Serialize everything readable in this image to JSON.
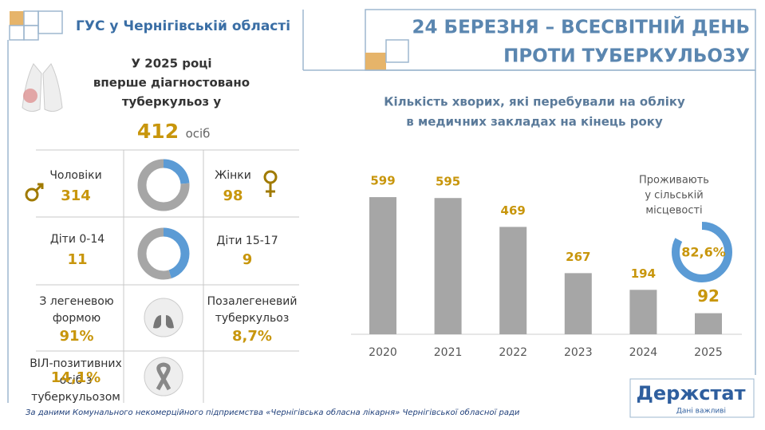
{
  "header": {
    "org": "ГУС у Чернігівській області",
    "title": [
      "24 БЕРЕЗНЯ – ВСЕСВІТНІЙ ДЕНЬ",
      "ПРОТИ ТУБЕРКУЛЬОЗУ"
    ]
  },
  "intro": {
    "lines": [
      "У 2025  році",
      "вперше діагностовано",
      "туберкульоз у"
    ],
    "total": 412,
    "unit": "осіб"
  },
  "stats": {
    "men": {
      "label": "Чоловіки",
      "value": 314
    },
    "women": {
      "label": "Жінки",
      "value": 98
    },
    "kids_0_14": {
      "label": "Діти 0-14",
      "value": 11
    },
    "kids_15_17": {
      "label": "Діти 15-17",
      "value": 9
    },
    "pulmonary": {
      "label": [
        "З легеневою",
        "формою"
      ],
      "value": "91%"
    },
    "extrapulmonary": {
      "label": [
        "Позалегеневий",
        "туберкульоз"
      ],
      "value": "8,7%"
    },
    "hiv": {
      "label": [
        "ВІЛ-позитивних",
        "осіб з",
        "туберкульозом"
      ],
      "value": "14,1%"
    }
  },
  "chart_data": {
    "type": "bar",
    "title": [
      "Кількість хворих, які перебували на обліку",
      "в медичних закладах на кінець року"
    ],
    "categories": [
      "2020",
      "2021",
      "2022",
      "2023",
      "2024",
      "2025"
    ],
    "values": [
      599,
      595,
      469,
      267,
      194,
      92
    ],
    "color": "#a6a6a6",
    "annotation": {
      "lines": [
        "Проживають",
        "у сільській",
        "місцевості"
      ],
      "value": 82.6,
      "value_label": "82,6%",
      "color": "#5b9bd5"
    }
  },
  "footer": {
    "source": "За даними Комунального некомерційного підприємства «Чернігівська обласна лікарня» Чернігівської обласної ради",
    "logo": "Держстат",
    "tagline": "Дані важливі"
  }
}
